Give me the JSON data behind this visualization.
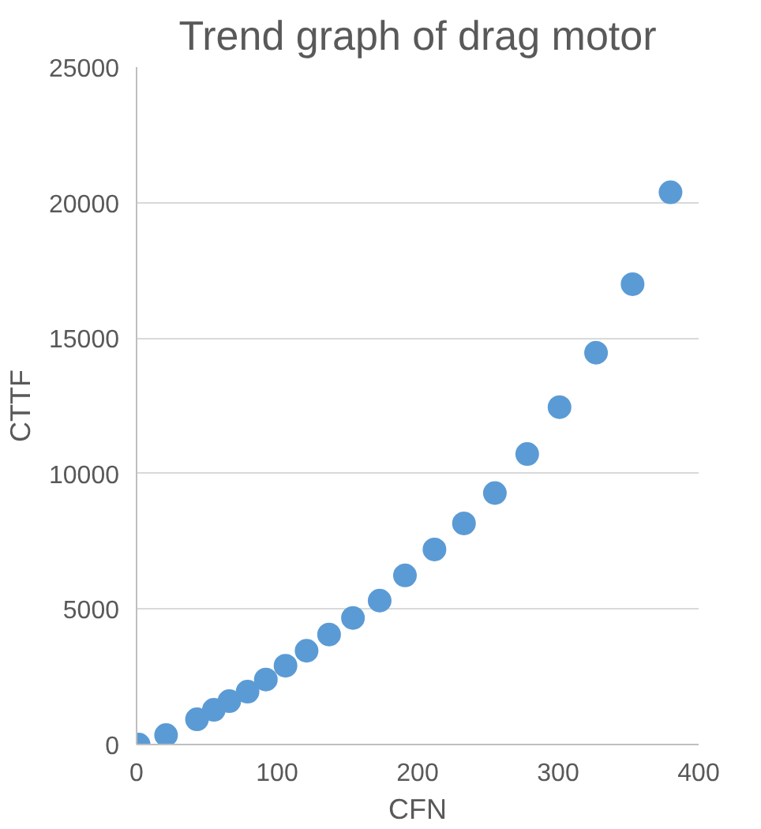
{
  "chart_data": {
    "type": "scatter",
    "title": "Trend graph of drag motor",
    "xlabel": "CFN",
    "ylabel": "CTTF",
    "x": [
      1.5,
      21,
      43,
      55,
      66,
      79,
      92,
      106,
      121,
      137,
      154,
      173,
      191,
      212,
      233,
      255,
      278,
      301,
      327,
      353,
      380
    ],
    "series": [
      {
        "color": "#5b9bd5",
        "values": [
          0,
          350,
          930,
          1280,
          1600,
          1950,
          2400,
          2910,
          3460,
          4060,
          4670,
          5310,
          6240,
          7200,
          8160,
          9280,
          10720,
          12450,
          14460,
          16990,
          20380
        ]
      }
    ],
    "xlim": [
      0,
      400
    ],
    "xticks": [
      0,
      100,
      200,
      300,
      400
    ],
    "ylim": [
      0,
      25000
    ],
    "yticks": [
      0,
      5000,
      10000,
      15000,
      20000,
      25000
    ],
    "grid": "y",
    "marker": "circle"
  }
}
